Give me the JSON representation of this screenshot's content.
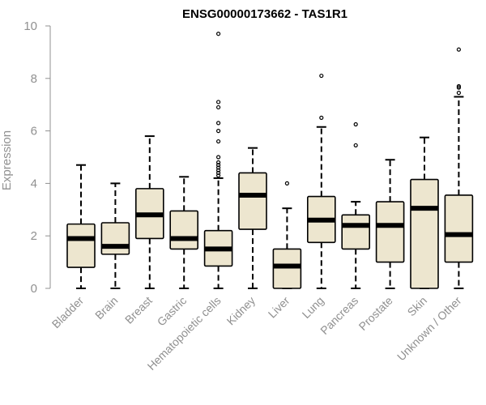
{
  "chart_data": {
    "type": "boxplot",
    "title": "ENSG00000173662 - TAS1R1",
    "ylabel": "Expression",
    "xlabel": "",
    "ylim": [
      0,
      10
    ],
    "yticks": [
      0,
      2,
      4,
      6,
      8,
      10
    ],
    "grid": false,
    "colors": {
      "box_fill": "#ede6cf",
      "stroke": "#000000",
      "axis": "#909090"
    },
    "categories": [
      "Bladder",
      "Brain",
      "Breast",
      "Gastric",
      "Hematopoietic cells",
      "Kidney",
      "Liver",
      "Lung",
      "Pancreas",
      "Prostate",
      "Skin",
      "Unknown / Other"
    ],
    "boxes": [
      {
        "min": 0.0,
        "q1": 0.8,
        "median": 1.9,
        "q3": 2.45,
        "max": 4.7,
        "outliers": []
      },
      {
        "min": 0.0,
        "q1": 1.3,
        "median": 1.6,
        "q3": 2.5,
        "max": 4.0,
        "outliers": []
      },
      {
        "min": 0.0,
        "q1": 1.9,
        "median": 2.8,
        "q3": 3.8,
        "max": 5.8,
        "outliers": []
      },
      {
        "min": 0.0,
        "q1": 1.5,
        "median": 1.9,
        "q3": 2.95,
        "max": 4.25,
        "outliers": []
      },
      {
        "min": 0.0,
        "q1": 0.85,
        "median": 1.5,
        "q3": 2.2,
        "max": 4.2,
        "outliers": [
          9.7,
          7.1,
          6.9,
          6.3,
          6.0,
          5.6,
          5.0,
          4.8,
          4.7,
          4.6,
          4.5,
          4.4,
          4.3
        ]
      },
      {
        "min": 0.0,
        "q1": 2.25,
        "median": 3.55,
        "q3": 4.4,
        "max": 5.35,
        "outliers": []
      },
      {
        "min": 0.0,
        "q1": 0.0,
        "median": 0.85,
        "q3": 1.5,
        "max": 3.05,
        "outliers": [
          4.0
        ]
      },
      {
        "min": 0.0,
        "q1": 1.75,
        "median": 2.6,
        "q3": 3.5,
        "max": 6.15,
        "outliers": [
          8.1,
          6.5
        ]
      },
      {
        "min": 0.0,
        "q1": 1.5,
        "median": 2.4,
        "q3": 2.8,
        "max": 3.3,
        "outliers": [
          6.25,
          5.45
        ]
      },
      {
        "min": 0.0,
        "q1": 1.0,
        "median": 2.4,
        "q3": 3.3,
        "max": 4.9,
        "outliers": []
      },
      {
        "min": 0.0,
        "q1": 0.0,
        "median": 3.05,
        "q3": 4.15,
        "max": 5.75,
        "outliers": []
      },
      {
        "min": 0.0,
        "q1": 1.0,
        "median": 2.05,
        "q3": 3.55,
        "max": 7.3,
        "outliers": [
          9.1,
          7.7,
          7.65,
          7.45
        ]
      }
    ]
  }
}
